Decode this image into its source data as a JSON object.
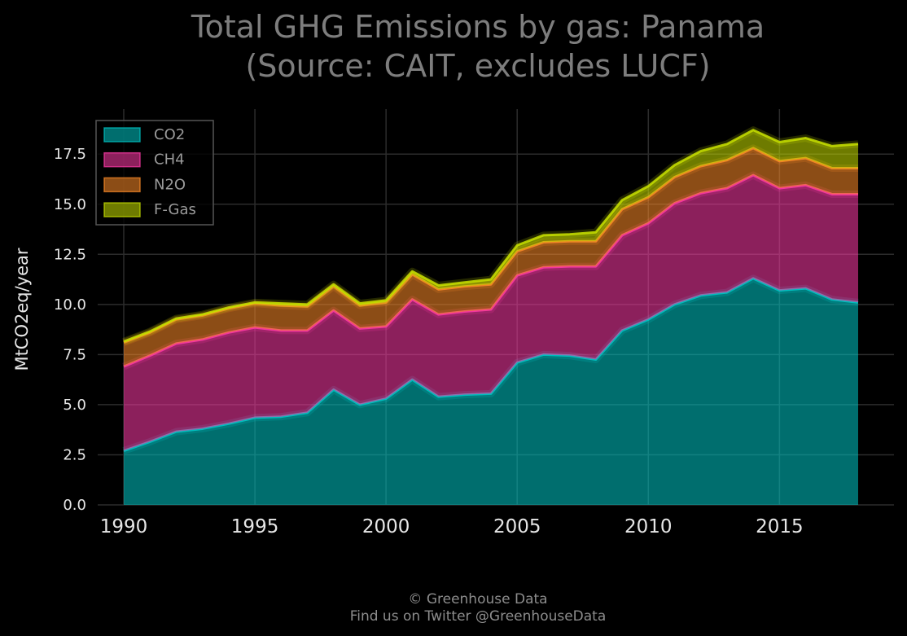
{
  "title_line1": "Total GHG Emissions by gas: Panama",
  "title_line2": "(Source: CAIT, excludes LUCF)",
  "credit_line1": "© Greenhouse Data",
  "credit_line2": "Find us on Twitter @GreenhouseData",
  "chart_data": {
    "type": "area",
    "stacked": true,
    "ylabel": "MtCO2eq/year",
    "xlabel": "",
    "xlim": [
      1990,
      2018
    ],
    "ylim": [
      0,
      19.5
    ],
    "x_ticks": [
      1990,
      1995,
      2000,
      2005,
      2010,
      2015
    ],
    "y_ticks": [
      "0.0",
      "2.5",
      "5.0",
      "7.5",
      "10.0",
      "12.5",
      "15.0",
      "17.5"
    ],
    "grid": true,
    "legend_position": "top-left",
    "x": [
      1990,
      1991,
      1992,
      1993,
      1994,
      1995,
      1996,
      1997,
      1998,
      1999,
      2000,
      2001,
      2002,
      2003,
      2004,
      2005,
      2006,
      2007,
      2008,
      2009,
      2010,
      2011,
      2012,
      2013,
      2014,
      2015,
      2016,
      2017,
      2018
    ],
    "series": [
      {
        "name": "CO2",
        "color": "#00c8c8",
        "values": [
          2.7,
          3.15,
          3.65,
          3.8,
          4.05,
          4.35,
          4.4,
          4.6,
          5.75,
          5.0,
          5.3,
          6.25,
          5.4,
          5.5,
          5.55,
          7.1,
          7.5,
          7.45,
          7.25,
          8.7,
          9.25,
          10.0,
          10.45,
          10.6,
          11.3,
          10.7,
          10.8,
          10.25,
          10.1
        ]
      },
      {
        "name": "CH4",
        "color": "#ff3aa8",
        "values": [
          4.2,
          4.3,
          4.4,
          4.45,
          4.55,
          4.5,
          4.3,
          4.1,
          3.95,
          3.8,
          3.6,
          4.0,
          4.1,
          4.15,
          4.2,
          4.35,
          4.35,
          4.45,
          4.65,
          4.75,
          4.8,
          5.05,
          5.1,
          5.2,
          5.15,
          5.1,
          5.15,
          5.25,
          5.4
        ]
      },
      {
        "name": "N2O",
        "color": "#ff8c28",
        "values": [
          1.2,
          1.15,
          1.2,
          1.2,
          1.2,
          1.2,
          1.25,
          1.2,
          1.2,
          1.15,
          1.2,
          1.25,
          1.25,
          1.25,
          1.25,
          1.2,
          1.25,
          1.25,
          1.25,
          1.3,
          1.3,
          1.3,
          1.35,
          1.4,
          1.35,
          1.35,
          1.35,
          1.3,
          1.3
        ]
      },
      {
        "name": "F-Gas",
        "color": "#c8e000",
        "values": [
          0.05,
          0.05,
          0.05,
          0.05,
          0.05,
          0.05,
          0.1,
          0.1,
          0.1,
          0.1,
          0.1,
          0.15,
          0.2,
          0.2,
          0.25,
          0.3,
          0.35,
          0.35,
          0.45,
          0.45,
          0.55,
          0.6,
          0.75,
          0.8,
          0.9,
          0.95,
          1.0,
          1.1,
          1.2
        ]
      }
    ]
  }
}
